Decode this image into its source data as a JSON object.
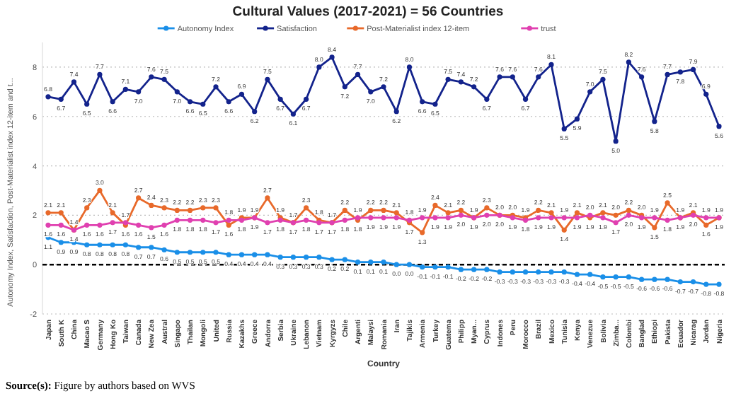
{
  "chart_data": {
    "type": "line",
    "title": "Cultural Values (2017-2021) = 56 Countries",
    "xlabel": "Country",
    "ylabel": "Autonomy Index, Satisfaction, Post-Materialist index 12-item and t...",
    "categories": [
      "Japan",
      "South K",
      "China",
      "Macao S",
      "Germany",
      "Hong Ko",
      "Taiwan",
      "Canada",
      "New Zea",
      "Austral",
      "Singapo",
      "Thailan",
      "Mongoli",
      "United",
      "Russia",
      "Kazakhs",
      "Greece",
      "Andorra",
      "Serbia",
      "Ukraine",
      "Lebanon",
      "Vietnam",
      "Kyrgyzs",
      "Chile",
      "Argenti",
      "Malaysi",
      "Romania",
      "Iran",
      "Tajikis",
      "Armenia",
      "Turkey",
      "Guatema",
      "Philipp",
      "Myan...",
      "Cyprus",
      "Indones",
      "Peru",
      "Morocco",
      "Brazil",
      "Mexico",
      "Tunisia",
      "Kenya",
      "Venezue",
      "Bolivia",
      "Zimba...",
      "Colombi",
      "Banglad",
      "Ethiopi",
      "Pakista",
      "Ecuador",
      "Nicarag",
      "Jordan",
      "Nigeria"
    ],
    "series": [
      {
        "name": "Autonomy Index",
        "color": "#1a8fe8",
        "values": [
          1.1,
          0.9,
          0.9,
          0.8,
          0.8,
          0.8,
          0.8,
          0.7,
          0.7,
          0.6,
          0.5,
          0.5,
          0.5,
          0.5,
          0.4,
          0.4,
          0.4,
          0.4,
          0.3,
          0.3,
          0.3,
          0.3,
          0.2,
          0.2,
          0.1,
          0.1,
          0.1,
          0.0,
          0.0,
          -0.1,
          -0.1,
          -0.1,
          -0.2,
          -0.2,
          -0.2,
          -0.3,
          -0.3,
          -0.3,
          -0.3,
          -0.3,
          -0.3,
          -0.4,
          -0.4,
          -0.5,
          -0.5,
          -0.5,
          -0.6,
          -0.6,
          -0.6,
          -0.7,
          -0.7,
          -0.8,
          -0.8
        ],
        "value_labels": [
          "1.1",
          "0.9",
          "0.9",
          "0.8",
          "0.8",
          "0.8",
          "0.8",
          "0.7",
          "0.7",
          "0.6",
          "0.5",
          "0.5",
          "0.5",
          "0.5",
          "0.4",
          "0.4",
          "0.4",
          "0.4",
          "0.3",
          "0.3",
          "0.3",
          "0.3",
          "0.2",
          "0.2",
          "0.1",
          "0.1",
          "0.1",
          "0.0",
          "0.0",
          "-0.1",
          "-0.1",
          "-0.1",
          "-0.2",
          "-0.2",
          "-0.2",
          "-0.3",
          "-0.3",
          "-0.3",
          "-0.3",
          "-0.3",
          "-0.3",
          "-0.4",
          "-0.4",
          "-0.5",
          "-0.5",
          "-0.5",
          "-0.6",
          "-0.6",
          "-0.6",
          "-0.7",
          "-0.7",
          "-0.8",
          "-0.8"
        ]
      },
      {
        "name": "Satisfaction",
        "color": "#13238c",
        "values": [
          6.8,
          6.7,
          7.4,
          6.5,
          7.7,
          6.6,
          7.1,
          7.0,
          7.6,
          7.5,
          7.0,
          6.6,
          6.5,
          7.2,
          6.6,
          6.9,
          6.2,
          7.5,
          6.7,
          6.1,
          6.7,
          8.0,
          8.4,
          7.2,
          7.7,
          7.0,
          7.2,
          6.2,
          8.0,
          6.6,
          6.5,
          7.5,
          7.4,
          7.2,
          6.7,
          7.6,
          7.6,
          6.7,
          7.6,
          8.1,
          5.5,
          5.9,
          7.0,
          7.5,
          5.0,
          8.2,
          7.6,
          5.8,
          7.7,
          7.8,
          7.9,
          6.9,
          5.6
        ],
        "value_labels": [
          "6.8",
          "6.7",
          "7.4",
          "6.5",
          "7.7",
          "6.6",
          "7.1",
          "7.0",
          "7.6",
          "7.5",
          "7.0",
          "6.6",
          "6.5",
          "7.2",
          "6.6",
          "6.9",
          "6.2",
          "7.5",
          "6.7",
          "6.1",
          "6.7",
          "8.0",
          "8.4",
          "7.2",
          "7.7",
          "7.0",
          "7.2",
          "6.2",
          "8.0",
          "6.6",
          "6.5",
          "7.5",
          "7.4",
          "7.2",
          "6.7",
          "7.6",
          "7.6",
          "6.7",
          "7.6",
          "8.1",
          "5.5",
          "5.9",
          "7.0",
          "7.5",
          "5.0",
          "8.2",
          "7.6",
          "5.8",
          "7.7",
          "7.8",
          "7.9",
          "6.9",
          "5.6"
        ]
      },
      {
        "name": "Post-Materialist index 12-item",
        "color": "#e8692a",
        "values": [
          2.1,
          2.1,
          1.4,
          2.3,
          3.0,
          2.1,
          1.6,
          2.7,
          2.4,
          2.3,
          2.2,
          2.2,
          2.3,
          2.3,
          1.6,
          1.9,
          1.9,
          2.7,
          1.9,
          1.7,
          2.3,
          1.8,
          1.7,
          2.2,
          1.8,
          2.2,
          2.2,
          2.1,
          1.7,
          1.3,
          2.4,
          2.1,
          2.2,
          1.9,
          2.3,
          2.0,
          2.0,
          1.9,
          2.2,
          2.1,
          1.4,
          2.1,
          1.9,
          2.1,
          2.0,
          2.2,
          2.0,
          1.5,
          2.5,
          1.9,
          2.1,
          1.6,
          1.9
        ],
        "value_labels": [
          "2.1",
          "2.1",
          "1.4",
          "2.3",
          "3.0",
          "2.1",
          "1.6",
          "2.7",
          "2.4",
          "2.3",
          "2.2",
          "2.2",
          "2.3",
          "2.3",
          "1.6",
          "1.9",
          "1.9",
          "2.7",
          "1.9",
          "1.7",
          "2.3",
          "1.8",
          "1.7",
          "2.2",
          "1.8",
          "2.2",
          "2.2",
          "2.1",
          "1.7",
          "1.3",
          "2.4",
          "2.1",
          "2.2",
          "1.9",
          "2.3",
          "2.0",
          "2.0",
          "1.9",
          "2.2",
          "2.1",
          "1.4",
          "2.1",
          "1.9",
          "2.1",
          "2.0",
          "2.2",
          "2.0",
          "1.5",
          "2.5",
          "1.9",
          "2.1",
          "1.6",
          "1.9"
        ]
      },
      {
        "name": "trust",
        "color": "#e040b0",
        "values": [
          1.6,
          1.6,
          1.4,
          1.6,
          1.6,
          1.7,
          1.7,
          1.6,
          1.5,
          1.6,
          1.8,
          1.8,
          1.8,
          1.7,
          1.8,
          1.8,
          1.9,
          1.7,
          1.8,
          1.7,
          1.8,
          1.7,
          1.7,
          1.8,
          1.9,
          1.9,
          1.9,
          1.9,
          1.8,
          1.9,
          1.9,
          1.9,
          2.0,
          1.9,
          2.0,
          2.0,
          1.9,
          1.8,
          1.9,
          1.9,
          1.9,
          1.9,
          2.0,
          1.9,
          1.7,
          2.0,
          1.9,
          1.9,
          1.8,
          1.9,
          2.0,
          1.9,
          1.9
        ],
        "value_labels": [
          "1.6",
          "1.6",
          "1.4",
          "1.6",
          "1.6",
          "1.7",
          "1.7",
          "1.6",
          "1.5",
          "1.6",
          "1.8",
          "1.8",
          "1.8",
          "1.7",
          "1.8",
          "1.8",
          "1.9",
          "1.7",
          "1.8",
          "1.7",
          "1.8",
          "1.7",
          "1.7",
          "1.8",
          "1.9",
          "1.9",
          "1.9",
          "1.9",
          "1.8",
          "1.9",
          "1.9",
          "1.9",
          "2.0",
          "1.9",
          "2.0",
          "2.0",
          "1.9",
          "1.8",
          "1.9",
          "1.9",
          "1.9",
          "1.9",
          "2.0",
          "1.9",
          "1.7",
          "2.0",
          "1.9",
          "1.9",
          "1.8",
          "1.9",
          "2.0",
          "1.9",
          "1.9"
        ]
      }
    ],
    "ylim": [
      -2,
      9
    ],
    "yticks": [
      -2,
      0,
      2,
      4,
      6,
      8
    ],
    "grid": "y",
    "legend": "top",
    "marker": "circle",
    "line_style": "solid",
    "ref_lines": [
      {
        "axis": "y",
        "value": 0,
        "color": "#000000",
        "line_style": "dashed"
      }
    ],
    "annotations": [
      "Source(s): Figure by authors based on WVS"
    ]
  }
}
